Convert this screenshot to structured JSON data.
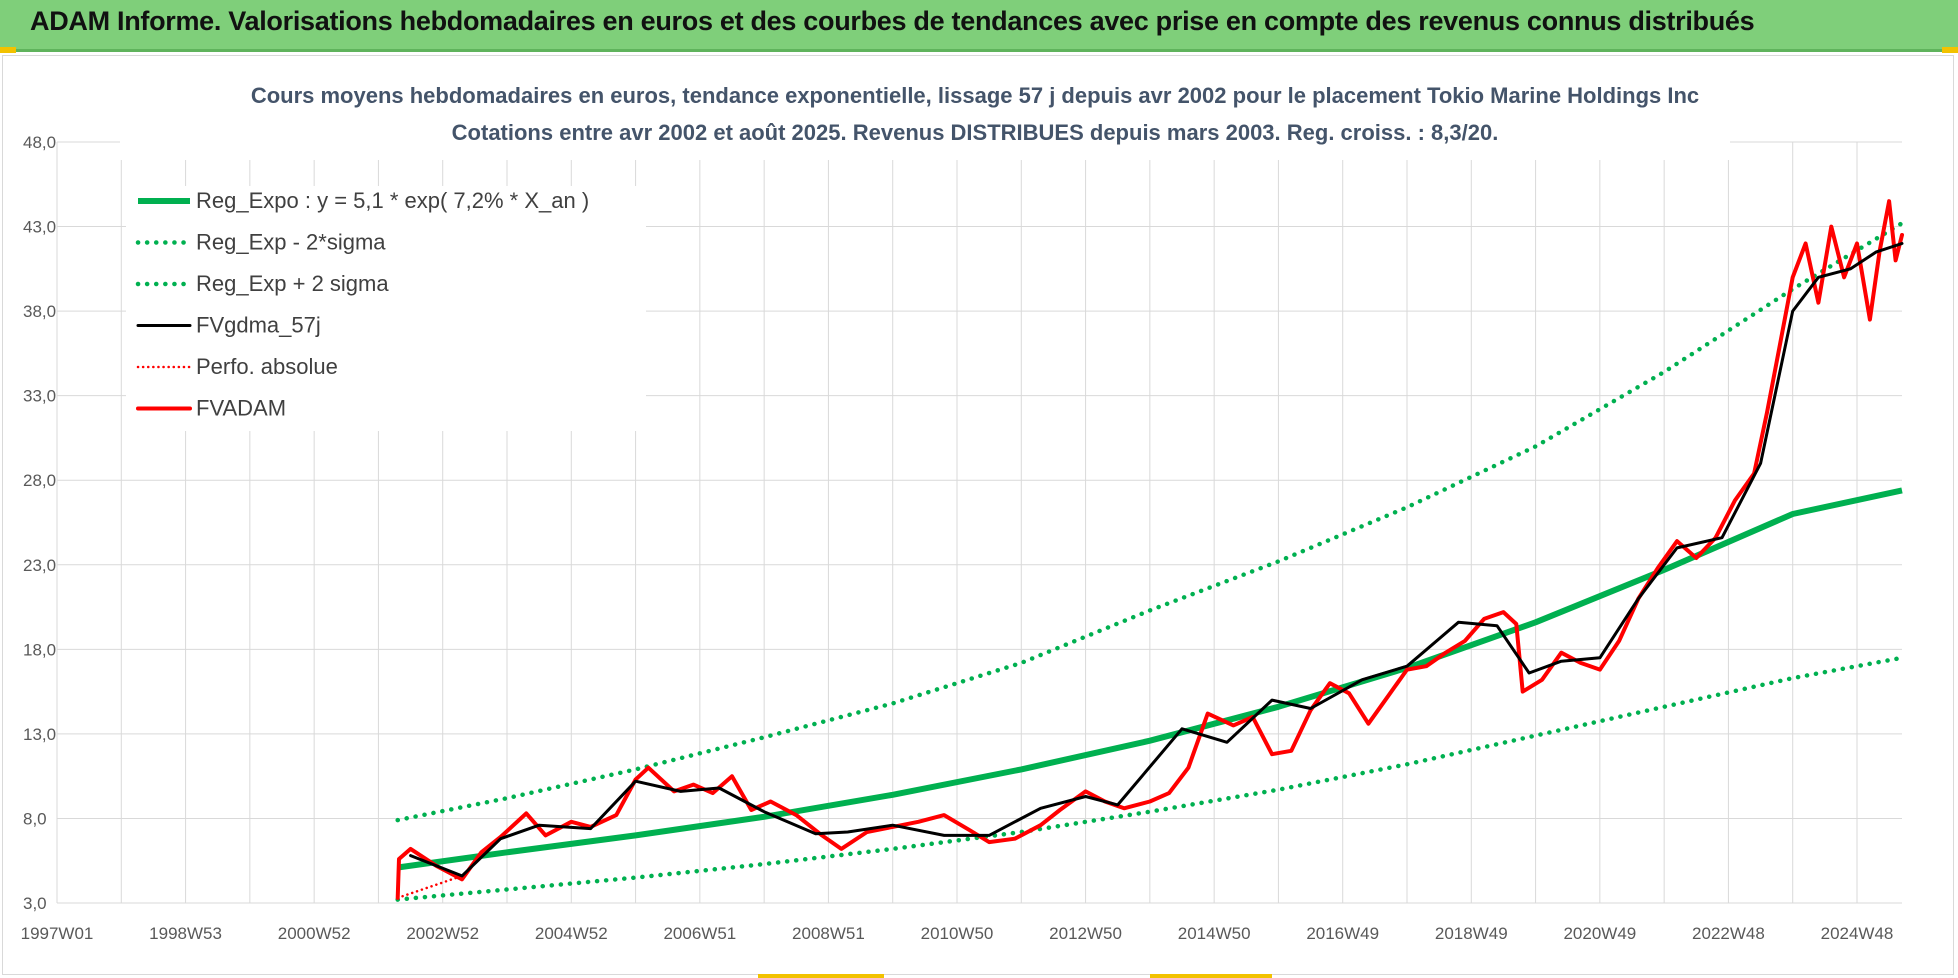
{
  "header": {
    "title": "ADAM Informe. Valorisations hebdomadaires en euros et des courbes de tendances avec prise en compte des revenus connus distribués"
  },
  "colors": {
    "header_bg": "#7fcf7a",
    "trend_green": "#00b050",
    "fvgdma_black": "#000000",
    "fvadam_red": "#ff0000",
    "gridline": "#d9d9d9"
  },
  "chart_data": {
    "type": "line",
    "title": [
      "Cours moyens hebdomadaires en euros, tendance exponentielle, lissage 57 j depuis avr 2002 pour le placement Tokio Marine Holdings Inc",
      "Cotations entre avr 2002 et août 2025. Revenus DISTRIBUES depuis mars 2003. Reg. croiss. : 8,3/20."
    ],
    "x_tick_labels": [
      "1997W01",
      "1998W53",
      "2000W52",
      "2002W52",
      "2004W52",
      "2006W51",
      "2008W51",
      "2010W50",
      "2012W50",
      "2014W50",
      "2016W49",
      "2018W49",
      "2020W49",
      "2022W48",
      "2024W48"
    ],
    "x_tick_years": [
      1997.0,
      1999.0,
      2001.0,
      2003.0,
      2005.0,
      2007.0,
      2009.0,
      2011.0,
      2013.0,
      2015.0,
      2017.0,
      2019.0,
      2021.0,
      2023.0,
      2025.0
    ],
    "xlim": [
      1997.0,
      2025.7
    ],
    "y_tick_labels": [
      "3,0",
      "8,0",
      "13,0",
      "18,0",
      "23,0",
      "28,0",
      "33,0",
      "38,0",
      "43,0",
      "48,0"
    ],
    "ylim": [
      3.0,
      48.0
    ],
    "grid": true,
    "legend_position": "top-left",
    "series": [
      {
        "name": "Reg_Expo : y = 5,1 * exp( 7,2% *  X_an )",
        "color": "#00b050",
        "style": "solid",
        "x": [
          2002.3,
          2004,
          2006,
          2008,
          2010,
          2012,
          2014,
          2016,
          2018,
          2020,
          2022,
          2024,
          2025.7
        ],
        "values": [
          5.1,
          6.0,
          7.0,
          8.1,
          9.4,
          10.9,
          12.6,
          14.6,
          16.9,
          19.6,
          22.7,
          26.0,
          27.4
        ]
      },
      {
        "name": "Reg_Exp - 2*sigma",
        "color": "#00b050",
        "style": "dotted",
        "x": [
          2002.3,
          2004,
          2006,
          2008,
          2010,
          2012,
          2014,
          2016,
          2018,
          2020,
          2022,
          2024,
          2025.7
        ],
        "values": [
          3.2,
          3.8,
          4.5,
          5.3,
          6.2,
          7.2,
          8.4,
          9.7,
          11.2,
          12.9,
          14.6,
          16.3,
          17.5
        ]
      },
      {
        "name": "Reg_Exp + 2 sigma",
        "color": "#00b050",
        "style": "dotted",
        "x": [
          2002.3,
          2004,
          2006,
          2008,
          2010,
          2012,
          2014,
          2016,
          2018,
          2020,
          2022,
          2024,
          2025.7
        ],
        "values": [
          7.9,
          9.2,
          10.9,
          12.8,
          14.8,
          17.2,
          20.3,
          23.2,
          26.4,
          30.0,
          34.4,
          39.3,
          43.2
        ]
      },
      {
        "name": "FVgdma_57j",
        "color": "#000000",
        "style": "solid",
        "x": [
          2002.5,
          2003.3,
          2003.9,
          2004.5,
          2005.3,
          2006.0,
          2006.7,
          2007.3,
          2008.0,
          2008.8,
          2009.3,
          2010.0,
          2010.8,
          2011.5,
          2012.3,
          2013.0,
          2013.5,
          2014.5,
          2015.2,
          2015.9,
          2016.5,
          2017.3,
          2018.0,
          2018.8,
          2019.4,
          2019.9,
          2020.4,
          2021.0,
          2021.6,
          2022.2,
          2022.9,
          2023.5,
          2024.0,
          2024.4,
          2024.9,
          2025.3,
          2025.7
        ],
        "values": [
          5.8,
          4.6,
          6.8,
          7.6,
          7.4,
          10.2,
          9.6,
          9.8,
          8.4,
          7.1,
          7.2,
          7.6,
          7.0,
          7.0,
          8.6,
          9.3,
          8.8,
          13.3,
          12.5,
          15.0,
          14.5,
          16.2,
          17.0,
          19.6,
          19.4,
          16.6,
          17.3,
          17.5,
          21.0,
          24.0,
          24.6,
          29.0,
          38.0,
          40.0,
          40.5,
          41.5,
          42.0
        ]
      },
      {
        "name": "Perfo. absolue",
        "color": "#ff0000",
        "style": "dotted",
        "x": [
          2002.3,
          2003.3,
          2003.9,
          2004.5,
          2005.3,
          2006.0,
          2006.7,
          2007.3,
          2008.0,
          2008.8,
          2009.3,
          2010.0,
          2010.8,
          2011.5,
          2012.3,
          2013.0,
          2013.5,
          2014.5,
          2015.2,
          2015.9,
          2016.5,
          2017.3,
          2018.0,
          2018.8,
          2019.4,
          2019.9,
          2020.4,
          2021.0,
          2021.6,
          2022.2,
          2022.9,
          2023.5,
          2024.0,
          2024.4,
          2024.9,
          2025.3,
          2025.7
        ],
        "values": [
          3.3,
          4.6,
          6.8,
          7.6,
          7.4,
          10.2,
          9.6,
          9.8,
          8.4,
          7.1,
          7.2,
          7.6,
          7.0,
          7.0,
          8.6,
          9.3,
          8.8,
          13.3,
          12.5,
          15.0,
          14.5,
          16.2,
          17.0,
          19.6,
          19.4,
          16.6,
          17.3,
          17.5,
          21.0,
          24.0,
          24.6,
          29.0,
          38.0,
          40.0,
          40.5,
          41.5,
          42.0
        ]
      },
      {
        "name": "FVADAM",
        "color": "#ff0000",
        "style": "solid",
        "x": [
          2002.3,
          2002.32,
          2002.5,
          2002.9,
          2003.3,
          2003.6,
          2003.9,
          2004.3,
          2004.6,
          2005.0,
          2005.3,
          2005.7,
          2006.0,
          2006.2,
          2006.6,
          2006.9,
          2007.2,
          2007.5,
          2007.8,
          2008.1,
          2008.5,
          2008.9,
          2009.2,
          2009.6,
          2010.0,
          2010.4,
          2010.8,
          2011.2,
          2011.5,
          2011.9,
          2012.3,
          2012.6,
          2013.0,
          2013.3,
          2013.6,
          2014.0,
          2014.3,
          2014.6,
          2014.9,
          2015.3,
          2015.6,
          2015.9,
          2016.2,
          2016.5,
          2016.8,
          2017.1,
          2017.4,
          2017.7,
          2018.0,
          2018.3,
          2018.6,
          2018.9,
          2019.2,
          2019.5,
          2019.7,
          2019.8,
          2020.1,
          2020.4,
          2020.7,
          2021.0,
          2021.3,
          2021.6,
          2021.9,
          2022.2,
          2022.5,
          2022.8,
          2023.1,
          2023.4,
          2023.6,
          2023.8,
          2024.0,
          2024.2,
          2024.4,
          2024.6,
          2024.8,
          2025.0,
          2025.2,
          2025.35,
          2025.5,
          2025.6,
          2025.7
        ],
        "values": [
          3.3,
          5.6,
          6.2,
          5.2,
          4.4,
          6.0,
          6.9,
          8.3,
          7.0,
          7.8,
          7.5,
          8.2,
          10.3,
          11.0,
          9.6,
          10.0,
          9.5,
          10.5,
          8.5,
          9.0,
          8.2,
          7.0,
          6.2,
          7.2,
          7.5,
          7.8,
          8.2,
          7.3,
          6.6,
          6.8,
          7.6,
          8.5,
          9.6,
          9.0,
          8.6,
          9.0,
          9.5,
          11.0,
          14.2,
          13.5,
          14.0,
          11.8,
          12.0,
          14.4,
          16.0,
          15.4,
          13.6,
          15.2,
          16.8,
          17.0,
          17.8,
          18.5,
          19.8,
          20.2,
          19.5,
          15.5,
          16.2,
          17.8,
          17.2,
          16.8,
          18.5,
          21.0,
          22.8,
          24.4,
          23.4,
          24.6,
          26.8,
          28.4,
          32.0,
          36.0,
          40.0,
          42.0,
          38.5,
          43.0,
          40.0,
          42.0,
          37.5,
          41.5,
          44.5,
          41.0,
          42.5
        ]
      }
    ]
  }
}
